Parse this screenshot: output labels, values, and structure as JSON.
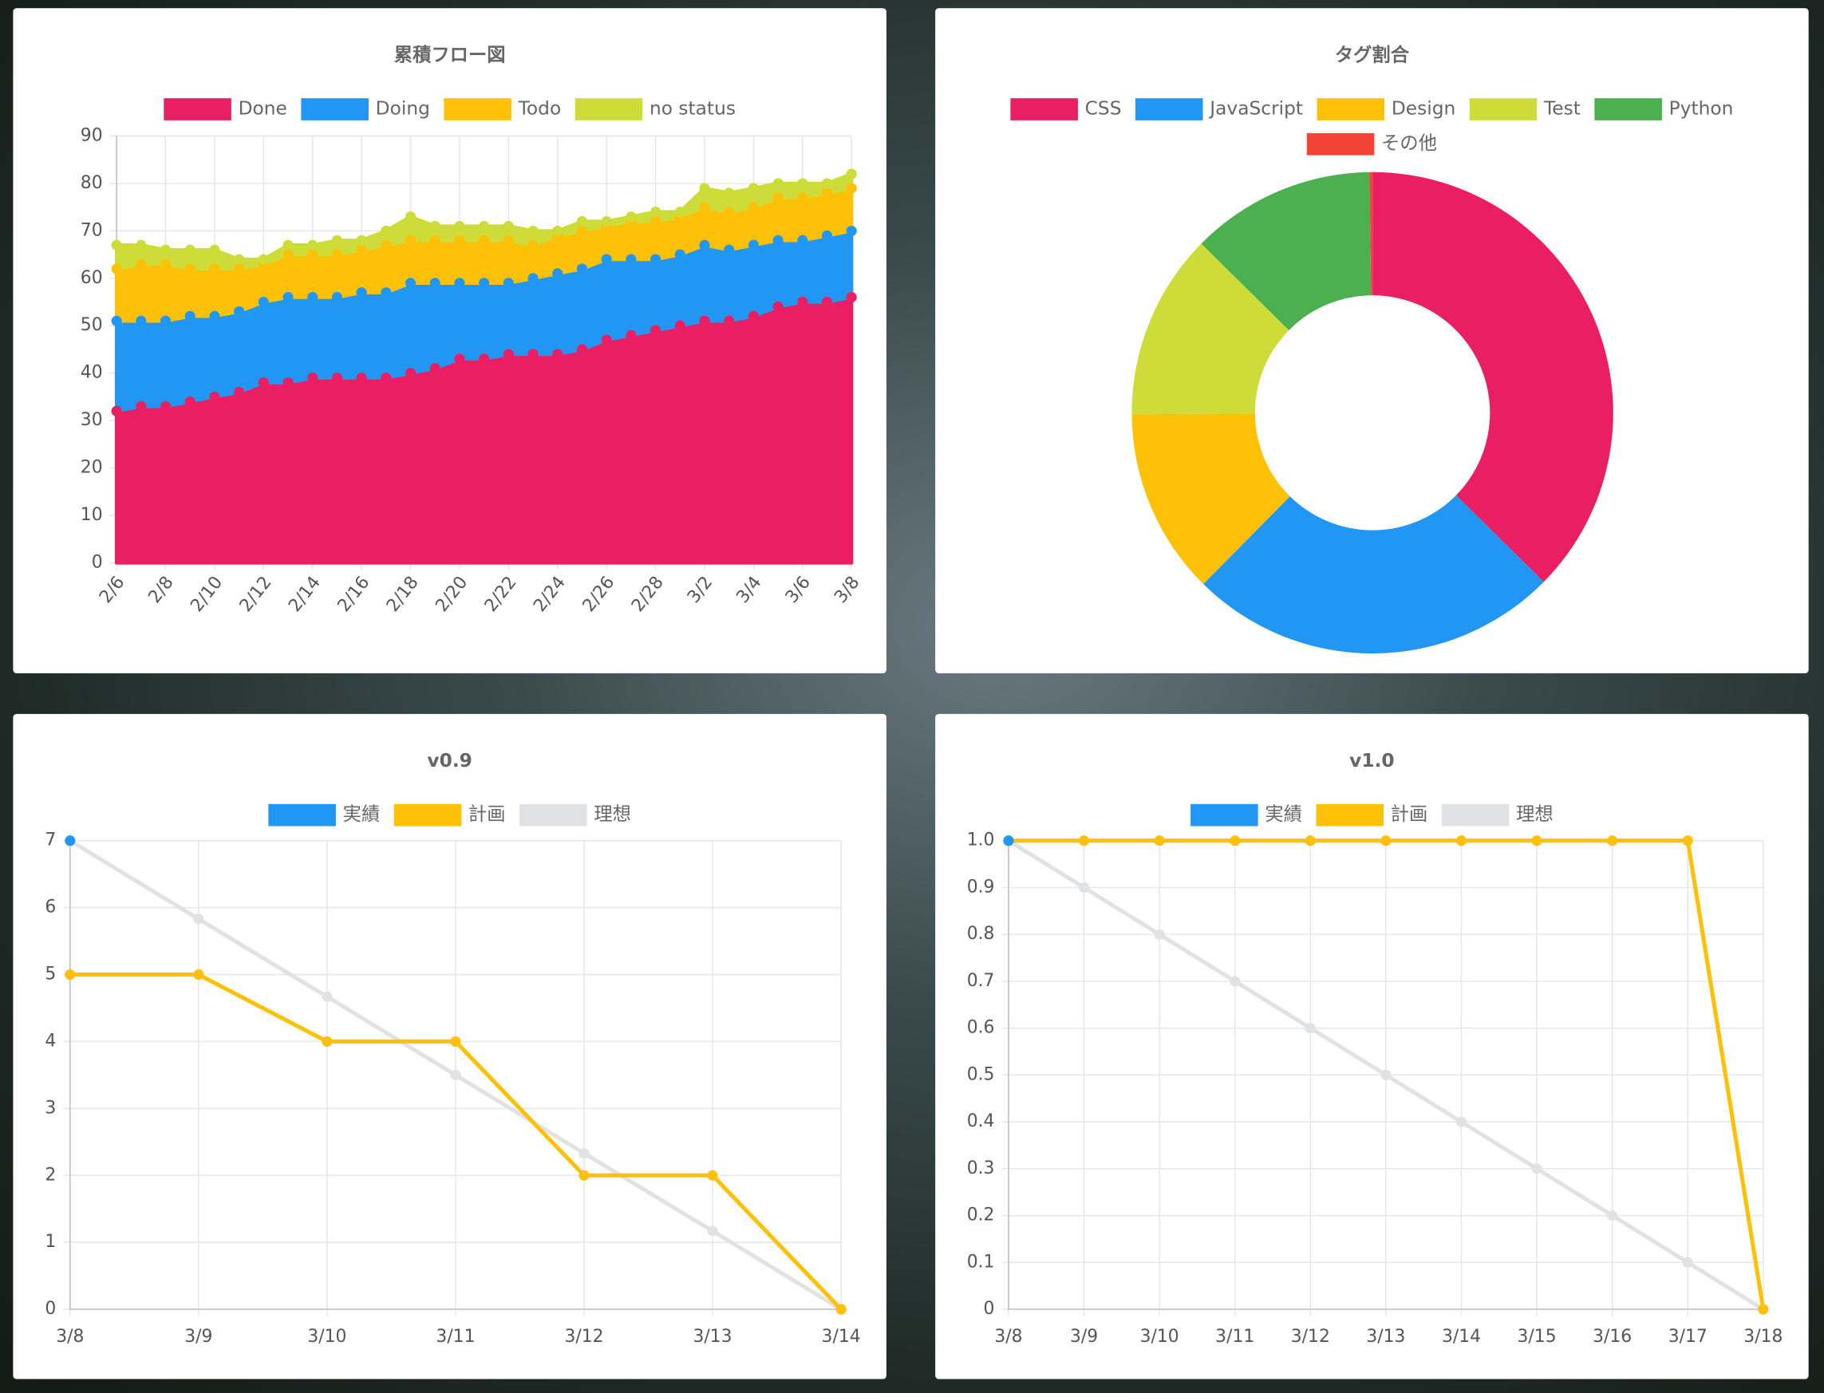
{
  "chart_data": [
    {
      "type": "area",
      "title": "累積フロー図",
      "stacked": true,
      "categories": [
        "2/6",
        null,
        "2/8",
        null,
        "2/10",
        null,
        "2/12",
        null,
        "2/14",
        null,
        "2/16",
        null,
        "2/18",
        null,
        "2/20",
        null,
        "2/22",
        null,
        "2/24",
        null,
        "2/26",
        null,
        "2/28",
        null,
        "3/2",
        null,
        "3/4",
        null,
        "3/6",
        null,
        "3/8"
      ],
      "series": [
        {
          "name": "Done",
          "color": "#e91e63",
          "values": [
            32,
            33,
            33,
            34,
            35,
            36,
            38,
            38,
            39,
            39,
            39,
            39,
            40,
            41,
            43,
            43,
            44,
            44,
            44,
            45,
            47,
            48,
            49,
            50,
            51,
            51,
            52,
            54,
            55,
            55,
            56
          ]
        },
        {
          "name": "Doing",
          "color": "#2196f3",
          "values": [
            19,
            18,
            18,
            18,
            17,
            17,
            17,
            18,
            17,
            17,
            18,
            18,
            19,
            18,
            16,
            16,
            15,
            16,
            17,
            17,
            17,
            16,
            15,
            15,
            16,
            15,
            15,
            14,
            13,
            14,
            14
          ]
        },
        {
          "name": "Todo",
          "color": "#ffc107",
          "values": [
            11,
            12,
            12,
            10,
            10,
            9,
            8,
            9,
            9,
            9,
            9,
            10,
            9,
            9,
            9,
            9,
            9,
            7,
            8,
            8,
            7,
            8,
            8,
            8,
            8,
            8,
            8,
            9,
            9,
            9,
            9
          ]
        },
        {
          "name": "no status",
          "color": "#cddc39",
          "values": [
            5,
            4,
            3,
            4,
            4,
            2,
            1,
            2,
            2,
            3,
            2,
            3,
            5,
            3,
            3,
            3,
            3,
            3,
            1,
            2,
            1,
            1,
            2,
            1,
            4,
            4,
            4,
            3,
            3,
            2,
            3
          ]
        }
      ],
      "ylim": [
        0,
        90
      ],
      "yticks": [
        0,
        10,
        20,
        30,
        40,
        50,
        60,
        70,
        80,
        90
      ],
      "grid": true
    },
    {
      "type": "doughnut",
      "title": "タグ割合",
      "categories": [
        "CSS",
        "JavaScript",
        "Design",
        "Test",
        "Python",
        "その他"
      ],
      "values": [
        37.4,
        25,
        12.5,
        12.5,
        12.4,
        0.2
      ],
      "colors": [
        "#e91e63",
        "#2196f3",
        "#ffc107",
        "#cddc39",
        "#4caf50",
        "#f44336"
      ]
    },
    {
      "type": "line",
      "title": "v0.9",
      "categories": [
        "3/8",
        "3/9",
        "3/10",
        "3/11",
        "3/12",
        "3/13",
        "3/14"
      ],
      "series": [
        {
          "name": "実績",
          "color": "#2196f3",
          "values": [
            7,
            null,
            null,
            null,
            null,
            null,
            null
          ]
        },
        {
          "name": "計画",
          "color": "#ffc107",
          "values": [
            5,
            5,
            4,
            4,
            2,
            2,
            0
          ]
        },
        {
          "name": "理想",
          "color": "#e0e2e4",
          "values": [
            7,
            5.83,
            4.67,
            3.5,
            2.33,
            1.17,
            0
          ]
        }
      ],
      "ylim": [
        0,
        7
      ],
      "yticks": [
        0,
        1,
        2,
        3,
        4,
        5,
        6,
        7
      ],
      "grid": true
    },
    {
      "type": "line",
      "title": "v1.0",
      "categories": [
        "3/8",
        "3/9",
        "3/10",
        "3/11",
        "3/12",
        "3/13",
        "3/14",
        "3/15",
        "3/16",
        "3/17",
        "3/18"
      ],
      "series": [
        {
          "name": "実績",
          "color": "#2196f3",
          "values": [
            1,
            null,
            null,
            null,
            null,
            null,
            null,
            null,
            null,
            null,
            null
          ]
        },
        {
          "name": "計画",
          "color": "#ffc107",
          "values": [
            1,
            1,
            1,
            1,
            1,
            1,
            1,
            1,
            1,
            1,
            0
          ]
        },
        {
          "name": "理想",
          "color": "#e0e2e4",
          "values": [
            1,
            0.9,
            0.8,
            0.7,
            0.6,
            0.5,
            0.4,
            0.3,
            0.2,
            0.1,
            0
          ]
        }
      ],
      "ylim": [
        0,
        1
      ],
      "yticks": [
        0,
        0.1,
        0.2,
        0.3,
        0.4,
        0.5,
        0.6,
        0.7,
        0.8,
        0.9,
        {
          "value": 1,
          "label": "1.0"
        }
      ],
      "grid": true
    }
  ]
}
